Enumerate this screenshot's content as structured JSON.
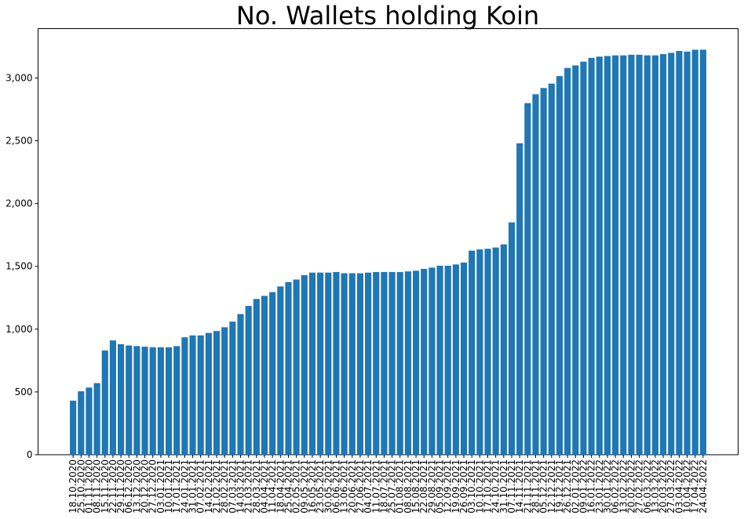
{
  "chart_data": {
    "type": "bar",
    "title": "No. Wallets holding Koin",
    "categories": [
      "18.10.2020",
      "25.10.2020",
      "01.11.2020",
      "08.11.2020",
      "15.11.2020",
      "22.11.2020",
      "29.11.2020",
      "06.12.2020",
      "13.12.2020",
      "20.12.2020",
      "27.12.2020",
      "03.01.2021",
      "10.01.2021",
      "17.01.2021",
      "24.01.2021",
      "31.01.2021",
      "07.02.2021",
      "14.02.2021",
      "21.02.2021",
      "28.02.2021",
      "07.03.2021",
      "14.03.2021",
      "21.03.2021",
      "28.03.2021",
      "04.04.2021",
      "11.04.2021",
      "18.04.2021",
      "25.04.2021",
      "02.05.2021",
      "09.05.2021",
      "16.05.2021",
      "23.05.2021",
      "30.05.2021",
      "06.06.2021",
      "13.06.2021",
      "20.06.2021",
      "27.06.2021",
      "04.07.2021",
      "11.07.2021",
      "18.07.2021",
      "25.07.2021",
      "01.08.2021",
      "08.08.2021",
      "15.08.2021",
      "22.08.2021",
      "29.08.2021",
      "05.09.2021",
      "12.09.2021",
      "19.09.2021",
      "26.09.2021",
      "03.10.2021",
      "10.10.2021",
      "17.10.2021",
      "24.10.2021",
      "31.10.2021",
      "07.11.2021",
      "14.11.2021",
      "21.11.2021",
      "28.11.2021",
      "05.12.2021",
      "12.12.2021",
      "19.12.2021",
      "26.12.2021",
      "02.01.2022",
      "09.01.2022",
      "16.01.2022",
      "23.01.2022",
      "30.01.2022",
      "06.02.2022",
      "13.02.2022",
      "20.02.2022",
      "27.02.2022",
      "06.03.2022",
      "13.03.2022",
      "20.03.2022",
      "27.03.2022",
      "03.04.2022",
      "10.04.2022",
      "17.04.2022",
      "24.04.2022"
    ],
    "values": [
      430,
      505,
      535,
      570,
      830,
      910,
      880,
      870,
      865,
      860,
      855,
      855,
      855,
      865,
      935,
      950,
      950,
      970,
      985,
      1015,
      1060,
      1120,
      1185,
      1240,
      1265,
      1295,
      1340,
      1375,
      1395,
      1430,
      1450,
      1450,
      1450,
      1455,
      1445,
      1445,
      1445,
      1450,
      1455,
      1455,
      1455,
      1455,
      1460,
      1465,
      1480,
      1490,
      1505,
      1505,
      1515,
      1530,
      1625,
      1635,
      1640,
      1650,
      1675,
      1850,
      2480,
      2800,
      2870,
      2920,
      2955,
      3015,
      3080,
      3100,
      3130,
      3160,
      3170,
      3175,
      3180,
      3180,
      3185,
      3185,
      3180,
      3180,
      3190,
      3200,
      3215,
      3210,
      3225,
      3225
    ],
    "color": "#1f77b4",
    "ylim": [
      0,
      3393
    ],
    "yticks": [
      0,
      500,
      {
        "value": 1000,
        "label": "1,000"
      },
      {
        "value": 1500,
        "label": "1,500"
      },
      {
        "value": 2000,
        "label": "2,000"
      },
      {
        "value": 2500,
        "label": "2,500"
      },
      {
        "value": 3000,
        "label": "3,000"
      }
    ],
    "grid": false
  }
}
